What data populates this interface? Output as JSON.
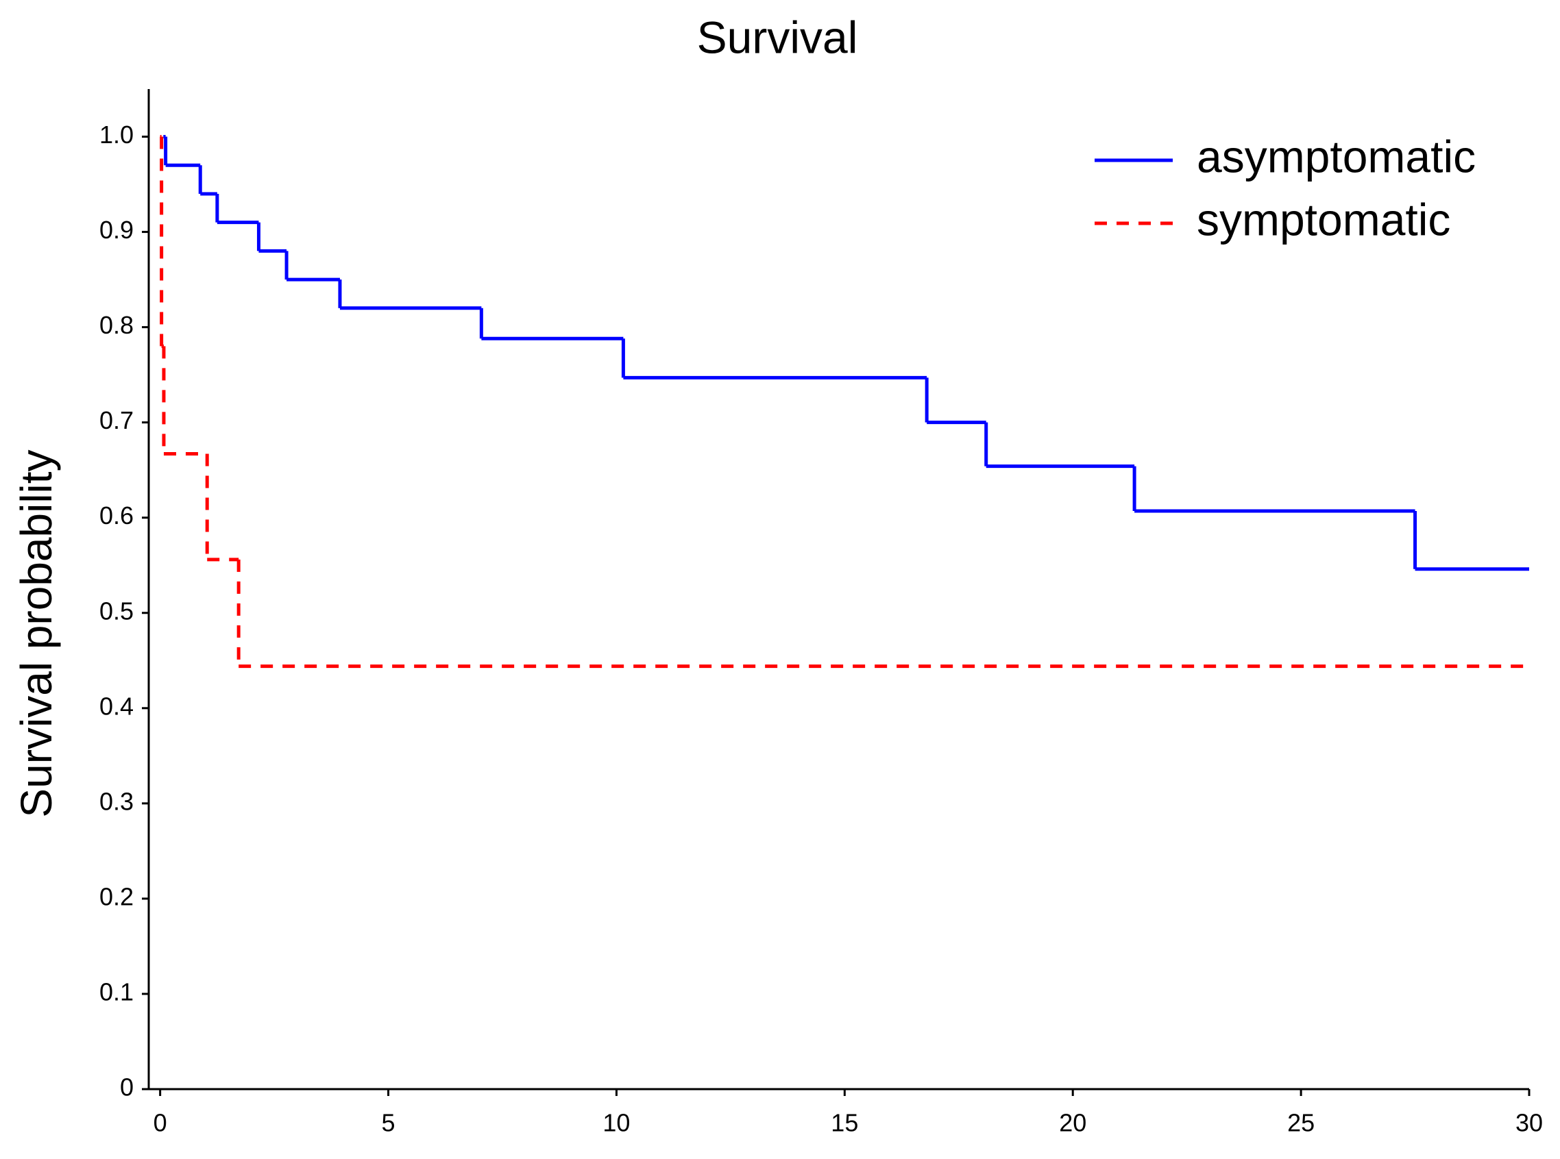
{
  "chart_data": {
    "type": "line",
    "step": true,
    "title": "Survival",
    "y_label": "Survival probability",
    "xlim": [
      -0.25,
      30
    ],
    "xticks": [
      0,
      5,
      10,
      15,
      20,
      25,
      30
    ],
    "ylim": [
      0,
      1.05
    ],
    "yticks": [
      0,
      0.1,
      0.2,
      0.3,
      0.4,
      0.5,
      0.6,
      0.7,
      0.8,
      0.9,
      {
        "value": 1,
        "label": "1.0"
      }
    ],
    "grid": false,
    "legend": "upper right",
    "series": [
      {
        "name": "asymptomatic",
        "color": "#0000ff",
        "line_style": "solid",
        "x": [
          0.07,
          0.12,
          0.88,
          1.25,
          2.16,
          2.77,
          3.94,
          7.04,
          10.15,
          16.8,
          18.1,
          21.35,
          27.5
        ],
        "values": [
          1.0,
          0.97,
          0.94,
          0.91,
          0.88,
          0.85,
          0.82,
          0.788,
          0.747,
          0.7,
          0.654,
          0.607,
          0.546
        ]
      },
      {
        "name": "symptomatic",
        "color": "#ff0000",
        "line_style": "dashed",
        "x": [
          0,
          0.03,
          0.08,
          1.03,
          1.72
        ],
        "values": [
          1.0,
          0.78,
          0.667,
          0.556,
          0.444
        ]
      }
    ]
  }
}
